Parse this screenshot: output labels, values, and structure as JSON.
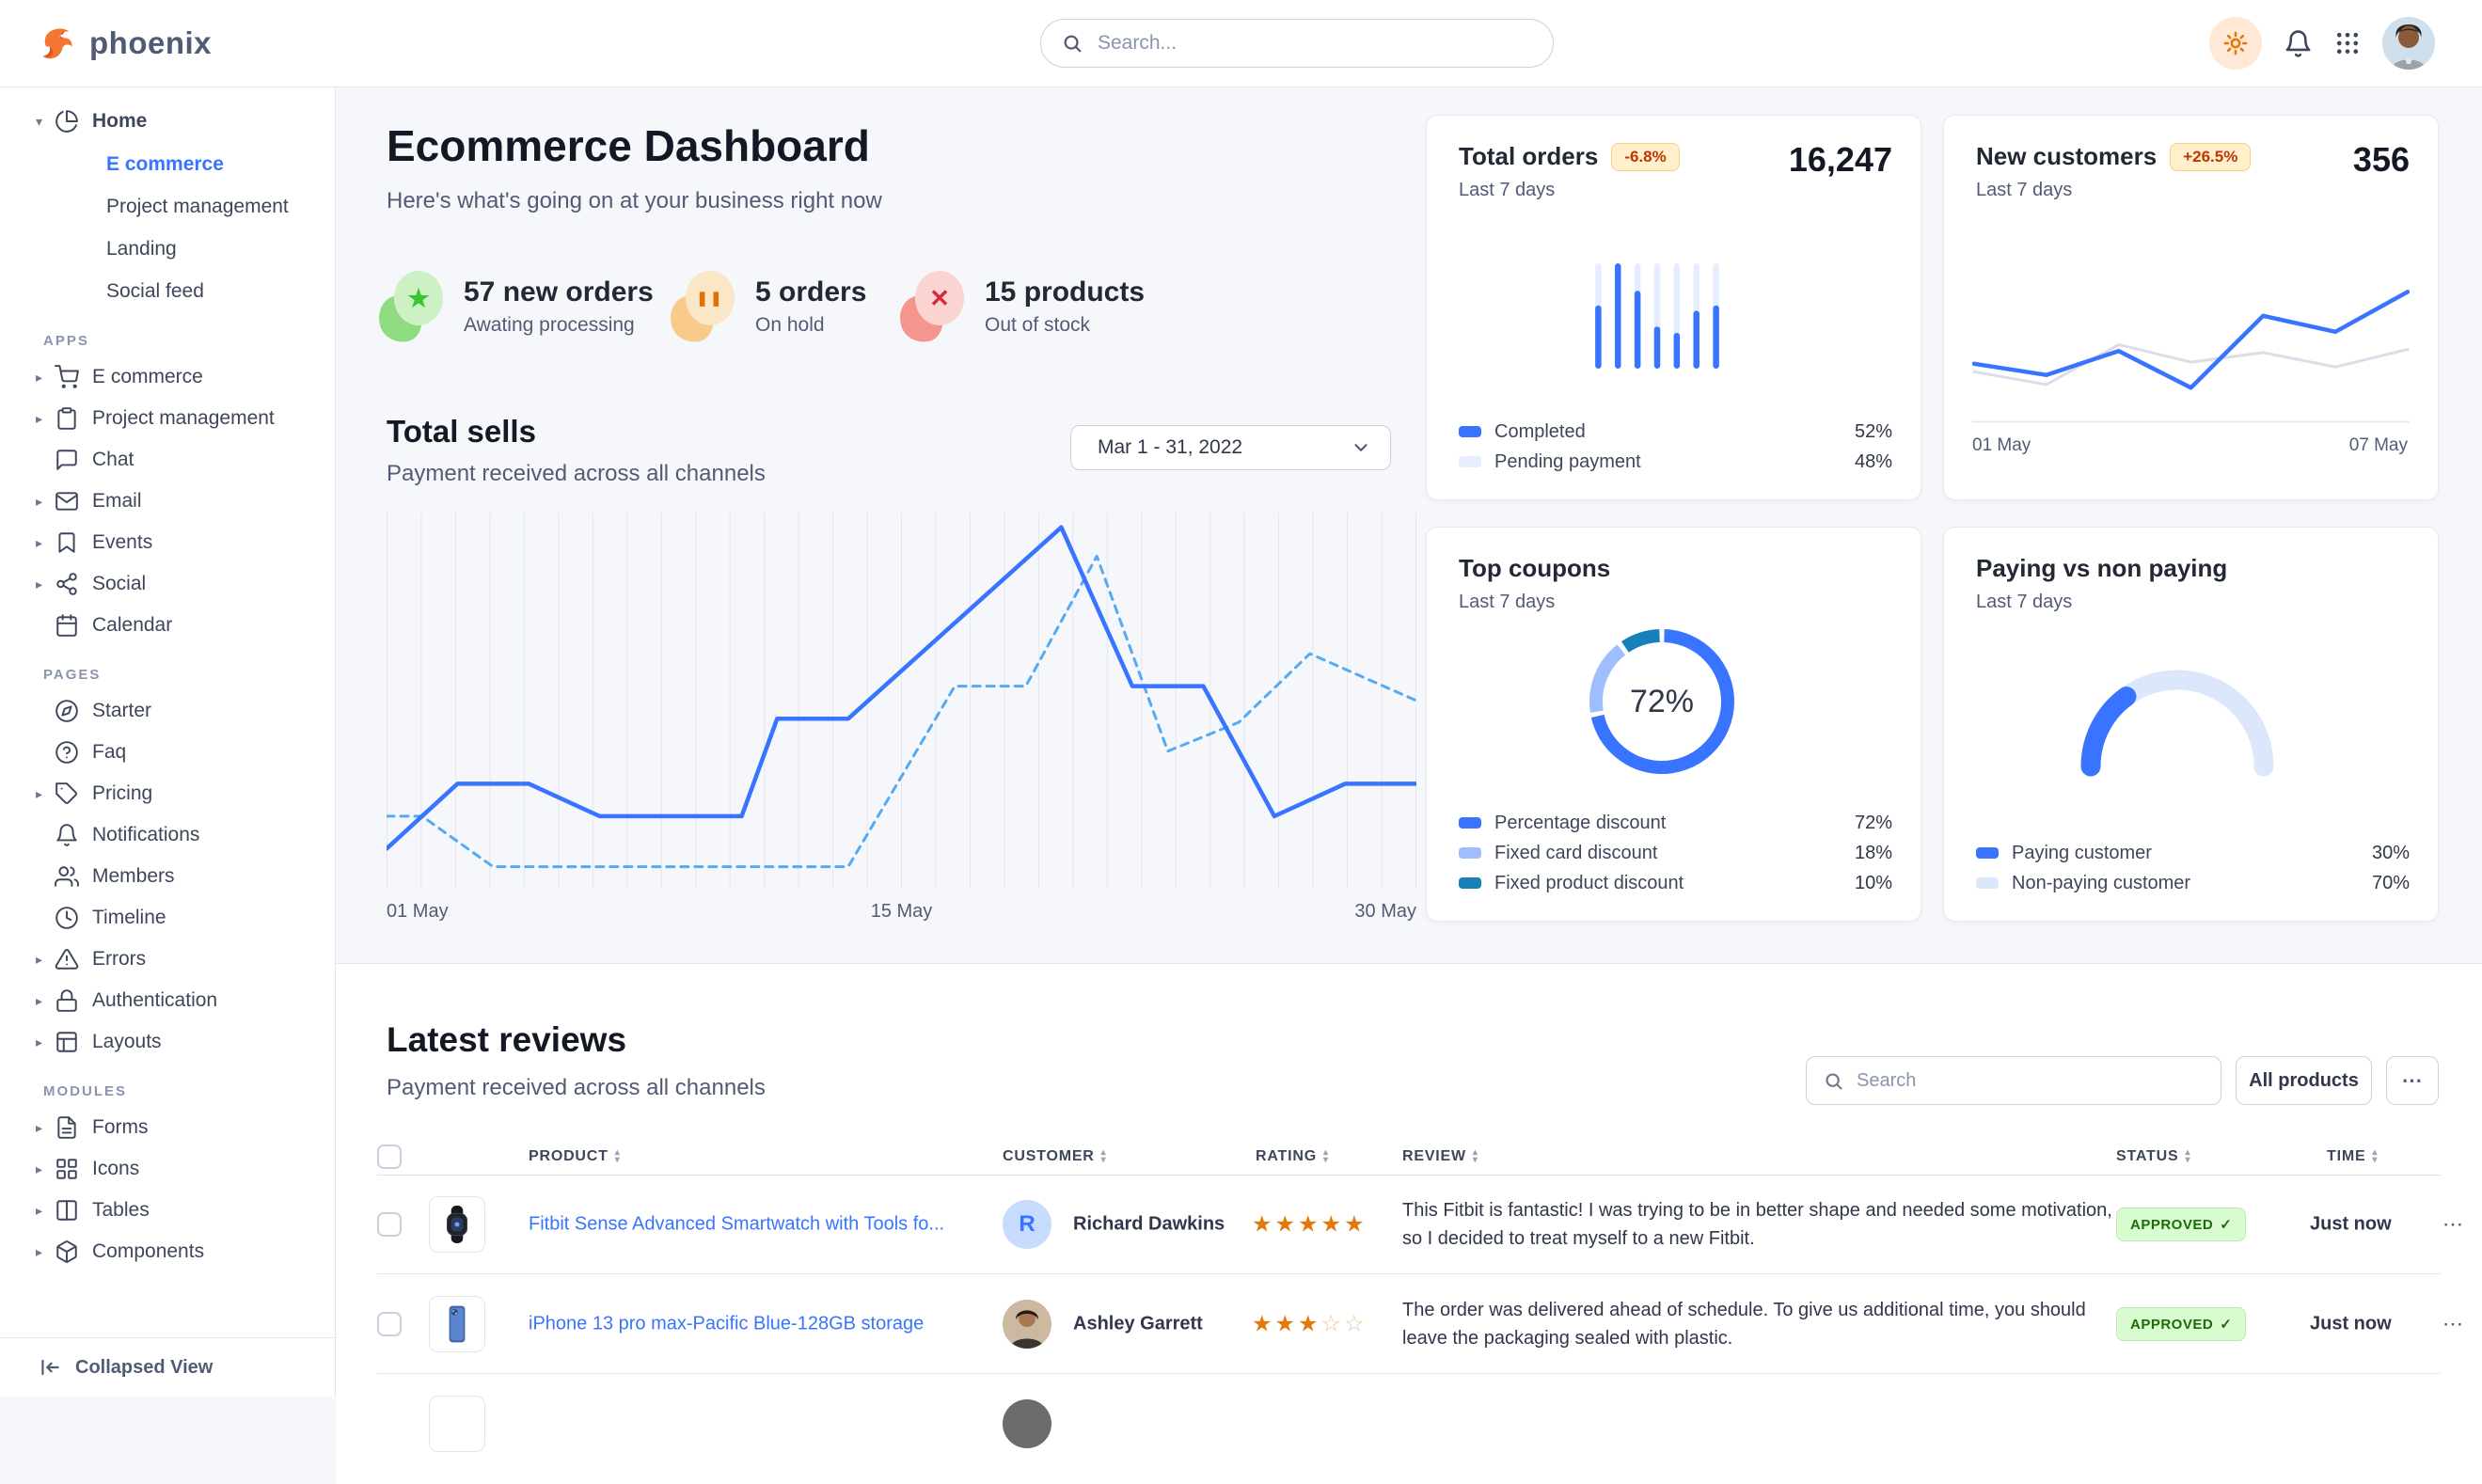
{
  "brand": {
    "name": "phoenix"
  },
  "header": {
    "search_placeholder": "Search..."
  },
  "sidebar": {
    "home": {
      "label": "Home",
      "icon": "pie-chart",
      "children": [
        {
          "label": "E commerce",
          "active": true
        },
        {
          "label": "Project management",
          "active": false
        },
        {
          "label": "Landing",
          "active": false
        },
        {
          "label": "Social feed",
          "active": false
        }
      ]
    },
    "sections": [
      {
        "title": "APPS",
        "items": [
          {
            "label": "E commerce",
            "icon": "cart",
            "caret": true
          },
          {
            "label": "Project management",
            "icon": "clipboard",
            "caret": true
          },
          {
            "label": "Chat",
            "icon": "chat",
            "caret": false
          },
          {
            "label": "Email",
            "icon": "mail",
            "caret": true
          },
          {
            "label": "Events",
            "icon": "bookmark",
            "caret": true
          },
          {
            "label": "Social",
            "icon": "share",
            "caret": true
          },
          {
            "label": "Calendar",
            "icon": "calendar",
            "caret": false
          }
        ]
      },
      {
        "title": "PAGES",
        "items": [
          {
            "label": "Starter",
            "icon": "compass",
            "caret": false
          },
          {
            "label": "Faq",
            "icon": "help",
            "caret": false
          },
          {
            "label": "Pricing",
            "icon": "tag",
            "caret": true
          },
          {
            "label": "Notifications",
            "icon": "bell",
            "caret": false
          },
          {
            "label": "Members",
            "icon": "users",
            "caret": false
          },
          {
            "label": "Timeline",
            "icon": "clock",
            "caret": false
          },
          {
            "label": "Errors",
            "icon": "alert",
            "caret": true
          },
          {
            "label": "Authentication",
            "icon": "lock",
            "caret": true
          },
          {
            "label": "Layouts",
            "icon": "layout",
            "caret": true
          }
        ]
      },
      {
        "title": "MODULES",
        "items": [
          {
            "label": "Forms",
            "icon": "file",
            "caret": true
          },
          {
            "label": "Icons",
            "icon": "grid",
            "caret": true
          },
          {
            "label": "Tables",
            "icon": "columns",
            "caret": true
          },
          {
            "label": "Components",
            "icon": "box",
            "caret": true
          }
        ]
      }
    ],
    "footer": {
      "label": "Collapsed View"
    }
  },
  "main": {
    "title": "Ecommerce Dashboard",
    "subtitle": "Here's what's going on at your business right now",
    "stats": [
      {
        "value": "57 new orders",
        "label": "Awating processing",
        "icon": "star",
        "color": "green"
      },
      {
        "value": "5 orders",
        "label": "On hold",
        "icon": "pause",
        "color": "orange"
      },
      {
        "value": "15 products",
        "label": "Out of stock",
        "icon": "x",
        "color": "red"
      }
    ],
    "total_sells": {
      "title": "Total sells",
      "subtitle": "Payment received across all channels",
      "date_range": "Mar 1 - 31, 2022"
    }
  },
  "cards": {
    "total_orders": {
      "title": "Total orders",
      "badge": "-6.8%",
      "period": "Last 7 days",
      "value": "16,247",
      "legend": [
        {
          "label": "Completed",
          "value": "52%",
          "color": "#3874ff"
        },
        {
          "label": "Pending payment",
          "value": "48%",
          "color": "#e5edff"
        }
      ]
    },
    "new_customers": {
      "title": "New customers",
      "badge": "+26.5%",
      "period": "Last 7 days",
      "value": "356",
      "x_labels": [
        "01 May",
        "07 May"
      ]
    },
    "top_coupons": {
      "title": "Top coupons",
      "period": "Last 7 days",
      "center_label": "72%",
      "legend": [
        {
          "label": "Percentage discount",
          "value": "72%",
          "color": "#3874ff"
        },
        {
          "label": "Fixed card discount",
          "value": "18%",
          "color": "#9fbeff"
        },
        {
          "label": "Fixed product discount",
          "value": "10%",
          "color": "#1780b9"
        }
      ]
    },
    "paying": {
      "title": "Paying vs non paying",
      "period": "Last 7 days",
      "legend": [
        {
          "label": "Paying customer",
          "value": "30%",
          "color": "#3874ff"
        },
        {
          "label": "Non-paying customer",
          "value": "70%",
          "color": "#dce7fb"
        }
      ]
    }
  },
  "reviews": {
    "title": "Latest reviews",
    "subtitle": "Payment received across all channels",
    "search_placeholder": "Search",
    "all_products_label": "All products",
    "menu_label": "...",
    "table": {
      "headers": [
        "PRODUCT",
        "CUSTOMER",
        "RATING",
        "REVIEW",
        "STATUS",
        "TIME"
      ],
      "rows": [
        {
          "product": "Fitbit Sense Advanced Smartwatch with Tools fo...",
          "product_image": "smartwatch",
          "customer": "Richard Dawkins",
          "avatar": "R",
          "rating": 5,
          "review": "This Fitbit is fantastic! I was trying to be in better shape and needed some motivation, so I decided to treat myself to a new Fitbit.",
          "status": "APPROVED",
          "time": "Just now"
        },
        {
          "product": "iPhone 13 pro max-Pacific Blue-128GB storage",
          "product_image": "iphone",
          "customer": "Ashley Garrett",
          "avatar": "photo",
          "rating": 3,
          "review": "The order was delivered ahead of schedule. To give us additional time, you should leave the packaging sealed with plastic.",
          "status": "APPROVED",
          "time": "Just now"
        }
      ]
    }
  },
  "chart_data": [
    {
      "id": "total-sells",
      "type": "line",
      "title": "Total sells",
      "x_labels": [
        "01 May",
        "15 May",
        "30 May"
      ],
      "x_range": [
        0,
        29
      ],
      "y_range": [
        0,
        100
      ],
      "grid": "vertical",
      "gridlines": 31,
      "legend_position": "none",
      "series": [
        {
          "name": "current",
          "style": "solid",
          "color": "#3874ff",
          "points": [
            [
              0,
              9
            ],
            [
              2,
              27
            ],
            [
              4,
              27
            ],
            [
              6,
              18
            ],
            [
              10,
              18
            ],
            [
              11,
              45
            ],
            [
              13,
              45
            ],
            [
              19,
              98
            ],
            [
              21,
              54
            ],
            [
              23,
              54
            ],
            [
              25,
              18
            ],
            [
              27,
              27
            ],
            [
              29,
              27
            ]
          ]
        },
        {
          "name": "previous",
          "style": "dashed",
          "color": "#55aaf3",
          "points": [
            [
              0,
              18
            ],
            [
              1,
              18
            ],
            [
              3,
              4
            ],
            [
              13,
              4
            ],
            [
              16,
              54
            ],
            [
              18,
              54
            ],
            [
              20,
              90
            ],
            [
              22,
              36
            ],
            [
              24,
              44
            ],
            [
              26,
              63
            ],
            [
              29,
              50
            ]
          ]
        }
      ]
    },
    {
      "id": "total-orders",
      "type": "bar",
      "categories": [
        "1",
        "2",
        "3",
        "4",
        "5",
        "6",
        "7"
      ],
      "ylim": [
        0,
        100
      ],
      "series": [
        {
          "name": "Completed",
          "color": "#3874ff",
          "values": [
            60,
            100,
            74,
            40,
            34,
            55,
            60
          ]
        },
        {
          "name": "Pending payment",
          "color": "#e5edff",
          "values": [
            100,
            100,
            100,
            100,
            100,
            100,
            100
          ]
        }
      ]
    },
    {
      "id": "new-customers",
      "type": "line",
      "x_labels": [
        "01 May",
        "07 May"
      ],
      "y_range": [
        0,
        100
      ],
      "series": [
        {
          "name": "previous",
          "style": "solid",
          "color": "#d9dee8",
          "points": [
            [
              0,
              31
            ],
            [
              1,
              23
            ],
            [
              2,
              48
            ],
            [
              3,
              37
            ],
            [
              4,
              43
            ],
            [
              5,
              34
            ],
            [
              6,
              45
            ]
          ]
        },
        {
          "name": "current",
          "style": "solid",
          "color": "#3874ff",
          "points": [
            [
              0,
              36
            ],
            [
              1,
              29
            ],
            [
              2,
              44
            ],
            [
              3,
              21
            ],
            [
              4,
              66
            ],
            [
              5,
              56
            ],
            [
              6,
              81
            ]
          ]
        }
      ]
    },
    {
      "id": "top-coupons",
      "type": "pie",
      "donut": true,
      "center_label": "72%",
      "slices": [
        {
          "label": "Percentage discount",
          "value": 72,
          "color": "#3874ff"
        },
        {
          "label": "Fixed card discount",
          "value": 18,
          "color": "#9fbeff"
        },
        {
          "label": "Fixed product discount",
          "value": 10,
          "color": "#1780b9"
        }
      ]
    },
    {
      "id": "paying-gauge",
      "type": "gauge",
      "slices": [
        {
          "label": "Paying customer",
          "value": 30,
          "color": "#3874ff"
        },
        {
          "label": "Non-paying customer",
          "value": 70,
          "color": "#dce7fb"
        }
      ]
    }
  ]
}
